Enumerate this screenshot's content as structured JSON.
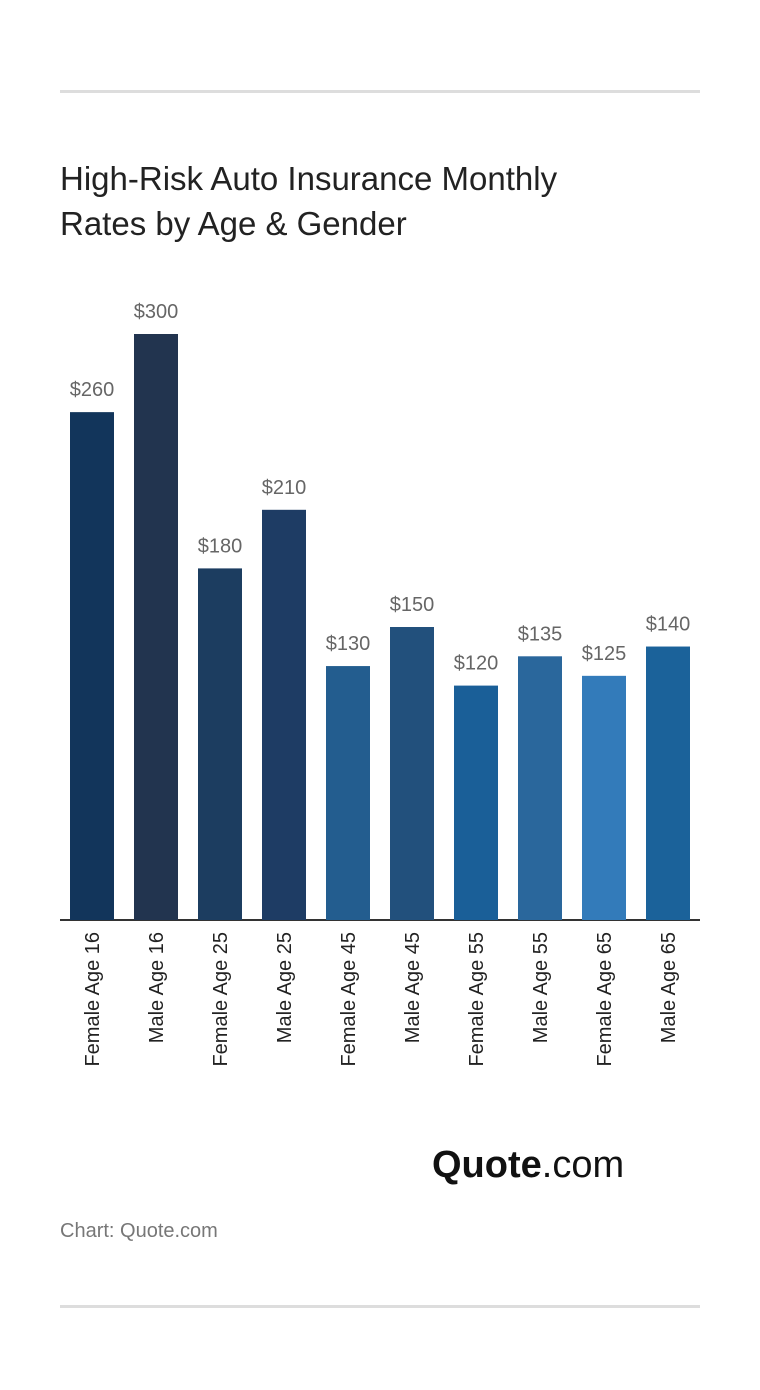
{
  "chart_data": {
    "type": "bar",
    "title": "High-Risk Auto Insurance Monthly Rates by Age & Gender",
    "categories": [
      "Female Age 16",
      "Male Age 16",
      "Female Age 25",
      "Male Age 25",
      "Female Age 45",
      "Male Age 45",
      "Female Age 55",
      "Male Age 55",
      "Female Age 65",
      "Male Age 65"
    ],
    "values": [
      260,
      300,
      180,
      210,
      130,
      150,
      120,
      135,
      125,
      140
    ],
    "value_labels": [
      "$260",
      "$300",
      "$180",
      "$210",
      "$130",
      "$150",
      "$120",
      "$135",
      "$125",
      "$140"
    ],
    "colors": [
      "#12355b",
      "#22344f",
      "#1c3d60",
      "#1e3c64",
      "#235d8f",
      "#22507c",
      "#1a5f98",
      "#2a679c",
      "#337bba",
      "#1b629a"
    ],
    "logo": {
      "name": "Quote",
      "suffix": ".com"
    },
    "source": "Chart: Quote.com"
  }
}
